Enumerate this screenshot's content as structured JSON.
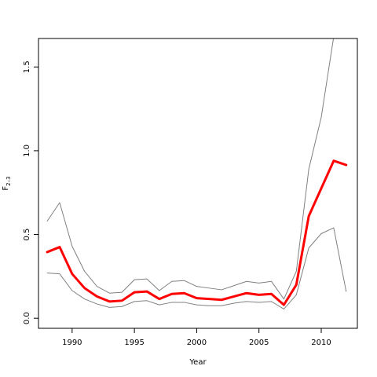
{
  "chart_data": {
    "type": "line",
    "xlabel": "Year",
    "ylabel": "F",
    "ylabel_sub": "2–3",
    "xlim": [
      1987.3,
      2012.9
    ],
    "ylim": [
      -0.06,
      1.67
    ],
    "xticks": [
      1990,
      1995,
      2000,
      2005,
      2010
    ],
    "xtick_labels": [
      "1990",
      "1995",
      "2000",
      "2005",
      "2010"
    ],
    "yticks": [
      0.0,
      0.5,
      1.0,
      1.5
    ],
    "ytick_labels": [
      "0.0",
      "0.5",
      "1.0",
      "1.5"
    ],
    "grid": false,
    "x": [
      1988,
      1989,
      1990,
      1991,
      1992,
      1993,
      1994,
      1995,
      1996,
      1997,
      1998,
      1999,
      2000,
      2001,
      2002,
      2003,
      2004,
      2005,
      2006,
      2007,
      2008,
      2009,
      2010,
      2011,
      2012
    ],
    "series": [
      {
        "role": "upper",
        "color": "#808080",
        "values": [
          0.58,
          0.69,
          0.43,
          0.28,
          0.19,
          0.15,
          0.155,
          0.23,
          0.235,
          0.165,
          0.22,
          0.225,
          0.19,
          0.18,
          0.17,
          0.195,
          0.22,
          0.21,
          0.22,
          0.115,
          0.28,
          0.89,
          1.2,
          1.68,
          null
        ]
      },
      {
        "role": "estimate",
        "color": "#ff0000",
        "values": [
          0.395,
          0.425,
          0.265,
          0.18,
          0.13,
          0.1,
          0.105,
          0.155,
          0.16,
          0.115,
          0.145,
          0.15,
          0.12,
          0.115,
          0.11,
          0.13,
          0.15,
          0.14,
          0.145,
          0.08,
          0.2,
          0.61,
          0.775,
          0.94,
          0.915
        ]
      },
      {
        "role": "lower",
        "color": "#808080",
        "values": [
          0.27,
          0.265,
          0.165,
          0.115,
          0.085,
          0.065,
          0.07,
          0.1,
          0.105,
          0.08,
          0.095,
          0.095,
          0.08,
          0.075,
          0.075,
          0.09,
          0.1,
          0.095,
          0.1,
          0.055,
          0.14,
          0.42,
          0.505,
          0.54,
          0.16
        ]
      }
    ]
  }
}
